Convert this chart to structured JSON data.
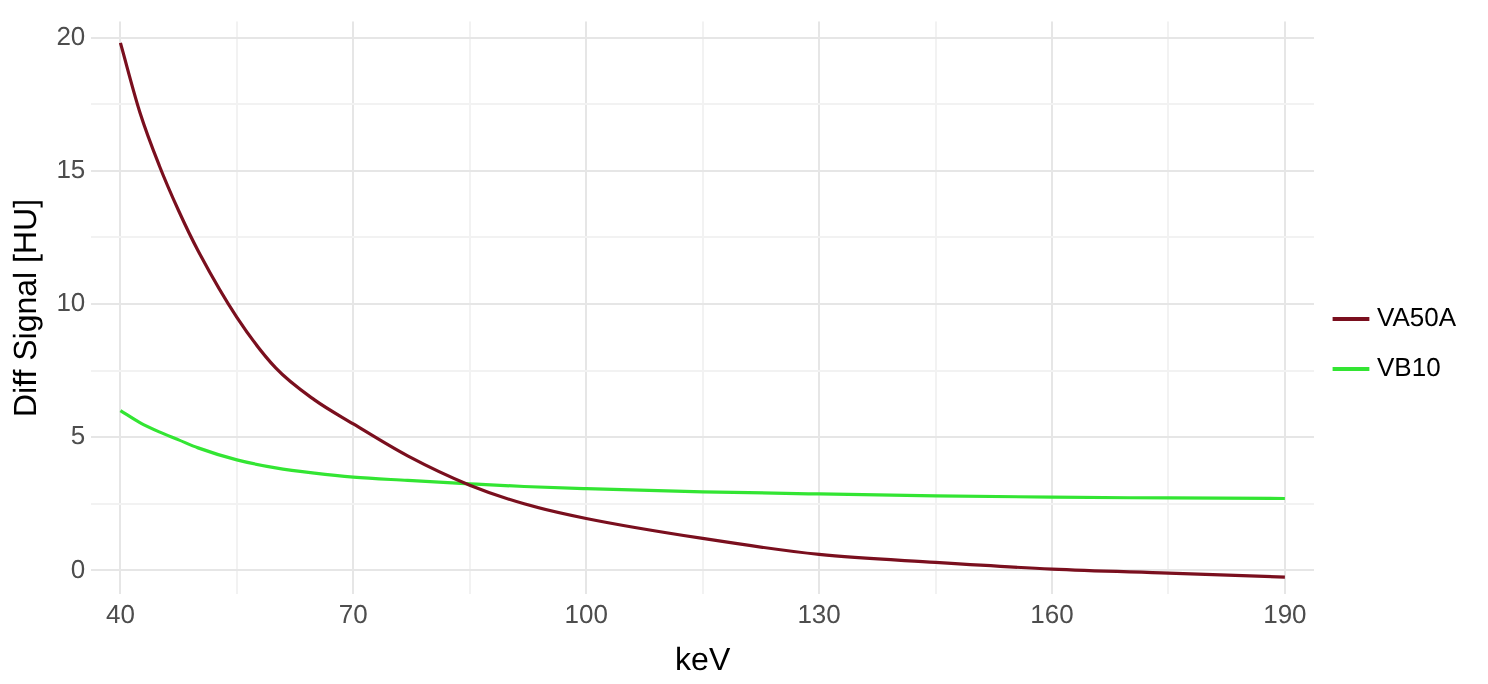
{
  "chart_data": {
    "type": "line",
    "xlabel": "keV",
    "ylabel": "Diff Signal [HU]",
    "x": [
      40,
      42.5,
      45,
      47.5,
      50,
      55,
      60,
      65,
      70,
      77,
      85,
      92,
      100,
      115,
      130,
      145,
      160,
      175,
      190
    ],
    "series": [
      {
        "name": "VA50A",
        "color": "#7a0f1e",
        "values": [
          19.8,
          17.2,
          15.2,
          13.5,
          12.0,
          9.5,
          7.6,
          6.4,
          5.5,
          4.3,
          3.2,
          2.5,
          1.95,
          1.2,
          0.6,
          0.3,
          0.05,
          -0.1,
          -0.25
        ]
      },
      {
        "name": "VB10",
        "color": "#33e533",
        "values": [
          6.0,
          5.55,
          5.2,
          4.9,
          4.6,
          4.15,
          3.85,
          3.65,
          3.5,
          3.38,
          3.25,
          3.15,
          3.07,
          2.95,
          2.87,
          2.8,
          2.75,
          2.72,
          2.7
        ]
      }
    ],
    "xlim": [
      36.25,
      193.75
    ],
    "ylim": [
      -0.9,
      20.6
    ],
    "xticks": [
      40,
      {
        "value": 55,
        "label": null
      },
      70,
      {
        "value": 85,
        "label": null
      },
      100,
      {
        "value": 115,
        "label": null
      },
      130,
      {
        "value": 145,
        "label": null
      },
      160,
      {
        "value": 175,
        "label": null
      },
      190
    ],
    "yticks": [
      0,
      {
        "value": 2.5,
        "label": null
      },
      5,
      {
        "value": 7.5,
        "label": null
      },
      10,
      {
        "value": 12.5,
        "label": null
      },
      15,
      {
        "value": 17.5,
        "label": null
      },
      20
    ],
    "grid": true,
    "legend": "right",
    "marker": "none",
    "line_style": "solid"
  }
}
